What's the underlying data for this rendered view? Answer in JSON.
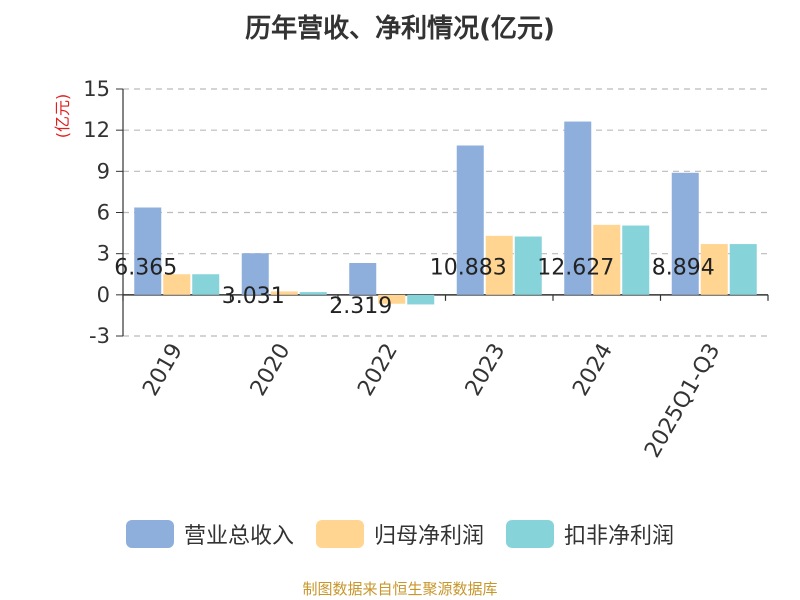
{
  "title": "历年营收、净利情况(亿元)",
  "source": "制图数据来自恒生聚源数据库",
  "chart_data": {
    "type": "bar",
    "title": "历年营收、净利情况(亿元)",
    "xlabel": "",
    "ylabel": "(亿元)",
    "ylim": [
      -3,
      15
    ],
    "yticks": [
      -3,
      0,
      3,
      6,
      9,
      12,
      15
    ],
    "grid": true,
    "legend_position": "bottom",
    "categories": [
      "2019",
      "2020",
      "2022",
      "2023",
      "2024",
      "2025Q1-Q3"
    ],
    "series": [
      {
        "name": "营业总收入",
        "color": "#8eaedb",
        "values": [
          6.365,
          3.031,
          2.319,
          10.883,
          12.627,
          8.894
        ]
      },
      {
        "name": "归母净利润",
        "color": "#ffd591",
        "values": [
          1.5,
          0.25,
          -0.65,
          4.3,
          5.1,
          3.7
        ]
      },
      {
        "name": "扣非净利润",
        "color": "#86d4d9",
        "values": [
          1.5,
          0.2,
          -0.7,
          4.25,
          5.05,
          3.7
        ]
      }
    ],
    "data_labels": [
      "6.365",
      "3.031",
      "2.319",
      "10.883",
      "12.627",
      "8.894"
    ]
  }
}
